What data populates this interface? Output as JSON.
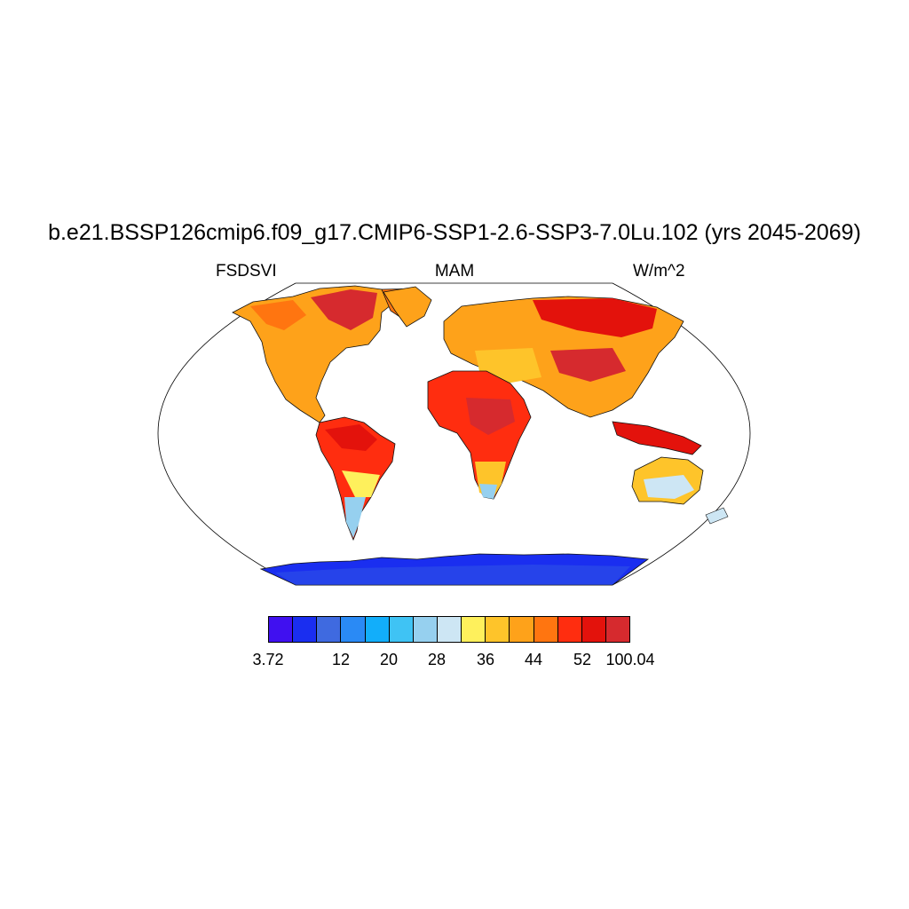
{
  "title": "b.e21.BSSP126cmip6.f09_g17.CMIP6-SSP1-2.6-SSP3-7.0Lu.102 (yrs 2045-2069)",
  "subtitle": {
    "left": "FSDSVI",
    "center": "MAM",
    "right": "W/m^2"
  },
  "colorbar": {
    "colors": [
      "#4010f0",
      "#1a2ef0",
      "#3f6ae0",
      "#2a8af5",
      "#12aefa",
      "#3fc3f4",
      "#96d0ef",
      "#cde6f4",
      "#fef05c",
      "#fec42a",
      "#fea21a",
      "#ff7510",
      "#ff2d0f",
      "#e3120c",
      "#d62a2e"
    ],
    "tick_labels": [
      "3.72",
      "12",
      "20",
      "28",
      "36",
      "44",
      "52",
      "100.04"
    ]
  },
  "map": {
    "projection": "robinson",
    "coastlines": true
  }
}
